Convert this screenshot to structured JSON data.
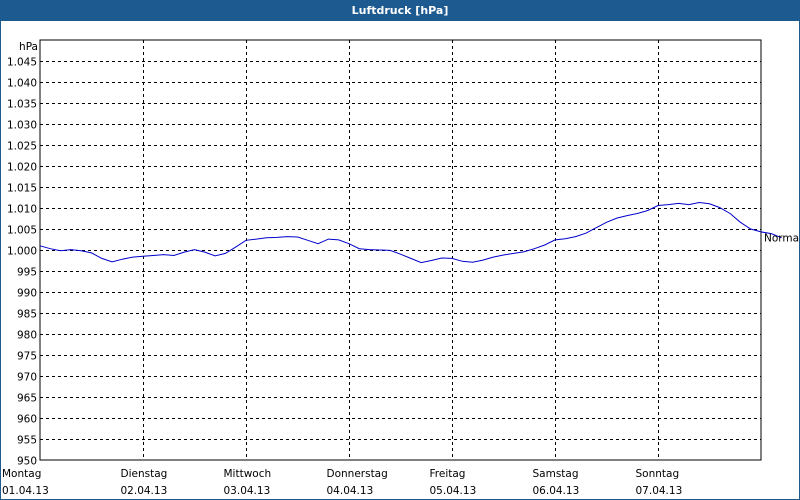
{
  "window": {
    "title": "Luftdruck [hPa]"
  },
  "chart_data": {
    "type": "line",
    "title": "Luftdruck [hPa]",
    "ylabel": "hPa",
    "xlabel": "",
    "ylim": [
      950,
      1050
    ],
    "xlim": [
      0,
      7
    ],
    "yticks": [
      950,
      955,
      960,
      965,
      970,
      975,
      980,
      985,
      990,
      995,
      1000,
      1005,
      1010,
      1015,
      1020,
      1025,
      1030,
      1035,
      1040,
      1045
    ],
    "ytick_labels": [
      "950",
      "955",
      "960",
      "965",
      "970",
      "975",
      "980",
      "985",
      "990",
      "995",
      "1.000",
      "1.005",
      "1.010",
      "1.015",
      "1.020",
      "1.025",
      "1.030",
      "1.035",
      "1.040",
      "1.045"
    ],
    "categories": [
      {
        "day": "Montag",
        "date": "01.04.13"
      },
      {
        "day": "Dienstag",
        "date": "02.04.13"
      },
      {
        "day": "Mittwoch",
        "date": "03.04.13"
      },
      {
        "day": "Donnerstag",
        "date": "04.04.13"
      },
      {
        "day": "Freitag",
        "date": "05.04.13"
      },
      {
        "day": "Samstag",
        "date": "06.04.13"
      },
      {
        "day": "Sonntag",
        "date": "07.04.13"
      }
    ],
    "annotations": [
      {
        "text": "Normal",
        "y": 1003
      }
    ],
    "grid": true,
    "series": [
      {
        "color": "#0000cc",
        "x": [
          0.0,
          0.1,
          0.2,
          0.3,
          0.4,
          0.5,
          0.6,
          0.7,
          0.8,
          0.9,
          1.0,
          1.1,
          1.2,
          1.3,
          1.4,
          1.5,
          1.6,
          1.7,
          1.8,
          1.9,
          2.0,
          2.1,
          2.2,
          2.3,
          2.4,
          2.5,
          2.6,
          2.7,
          2.8,
          2.9,
          3.0,
          3.1,
          3.2,
          3.3,
          3.4,
          3.5,
          3.6,
          3.7,
          3.8,
          3.9,
          4.0,
          4.1,
          4.2,
          4.3,
          4.4,
          4.5,
          4.6,
          4.7,
          4.8,
          4.9,
          5.0,
          5.1,
          5.2,
          5.3,
          5.4,
          5.5,
          5.6,
          5.7,
          5.8,
          5.9,
          6.0,
          6.1,
          6.2,
          6.3,
          6.4,
          6.5,
          6.6,
          6.7,
          6.8,
          6.9,
          7.0,
          7.1,
          7.2
        ],
        "y": [
          1001.0,
          1000.3,
          999.8,
          1000.1,
          999.8,
          999.3,
          998.0,
          997.2,
          997.8,
          998.3,
          998.5,
          998.7,
          998.9,
          998.7,
          999.5,
          1000.1,
          999.5,
          998.6,
          999.2,
          1000.7,
          1002.3,
          1002.6,
          1002.9,
          1003.0,
          1003.2,
          1003.1,
          1002.3,
          1001.5,
          1002.6,
          1002.4,
          1001.5,
          1000.3,
          1000.1,
          1000.0,
          999.9,
          999.0,
          998.0,
          997.0,
          997.5,
          998.1,
          998.0,
          997.3,
          997.1,
          997.6,
          998.3,
          998.8,
          999.2,
          999.6,
          1000.3,
          1001.2,
          1002.4,
          1002.7,
          1003.2,
          1004.0,
          1005.3,
          1006.6,
          1007.6,
          1008.2,
          1008.7,
          1009.4,
          1010.6,
          1010.8,
          1011.1,
          1010.8,
          1011.3,
          1011.0,
          1010.1,
          1008.7,
          1006.6,
          1005.0,
          1004.3,
          1003.9,
          1002.9
        ]
      }
    ]
  }
}
